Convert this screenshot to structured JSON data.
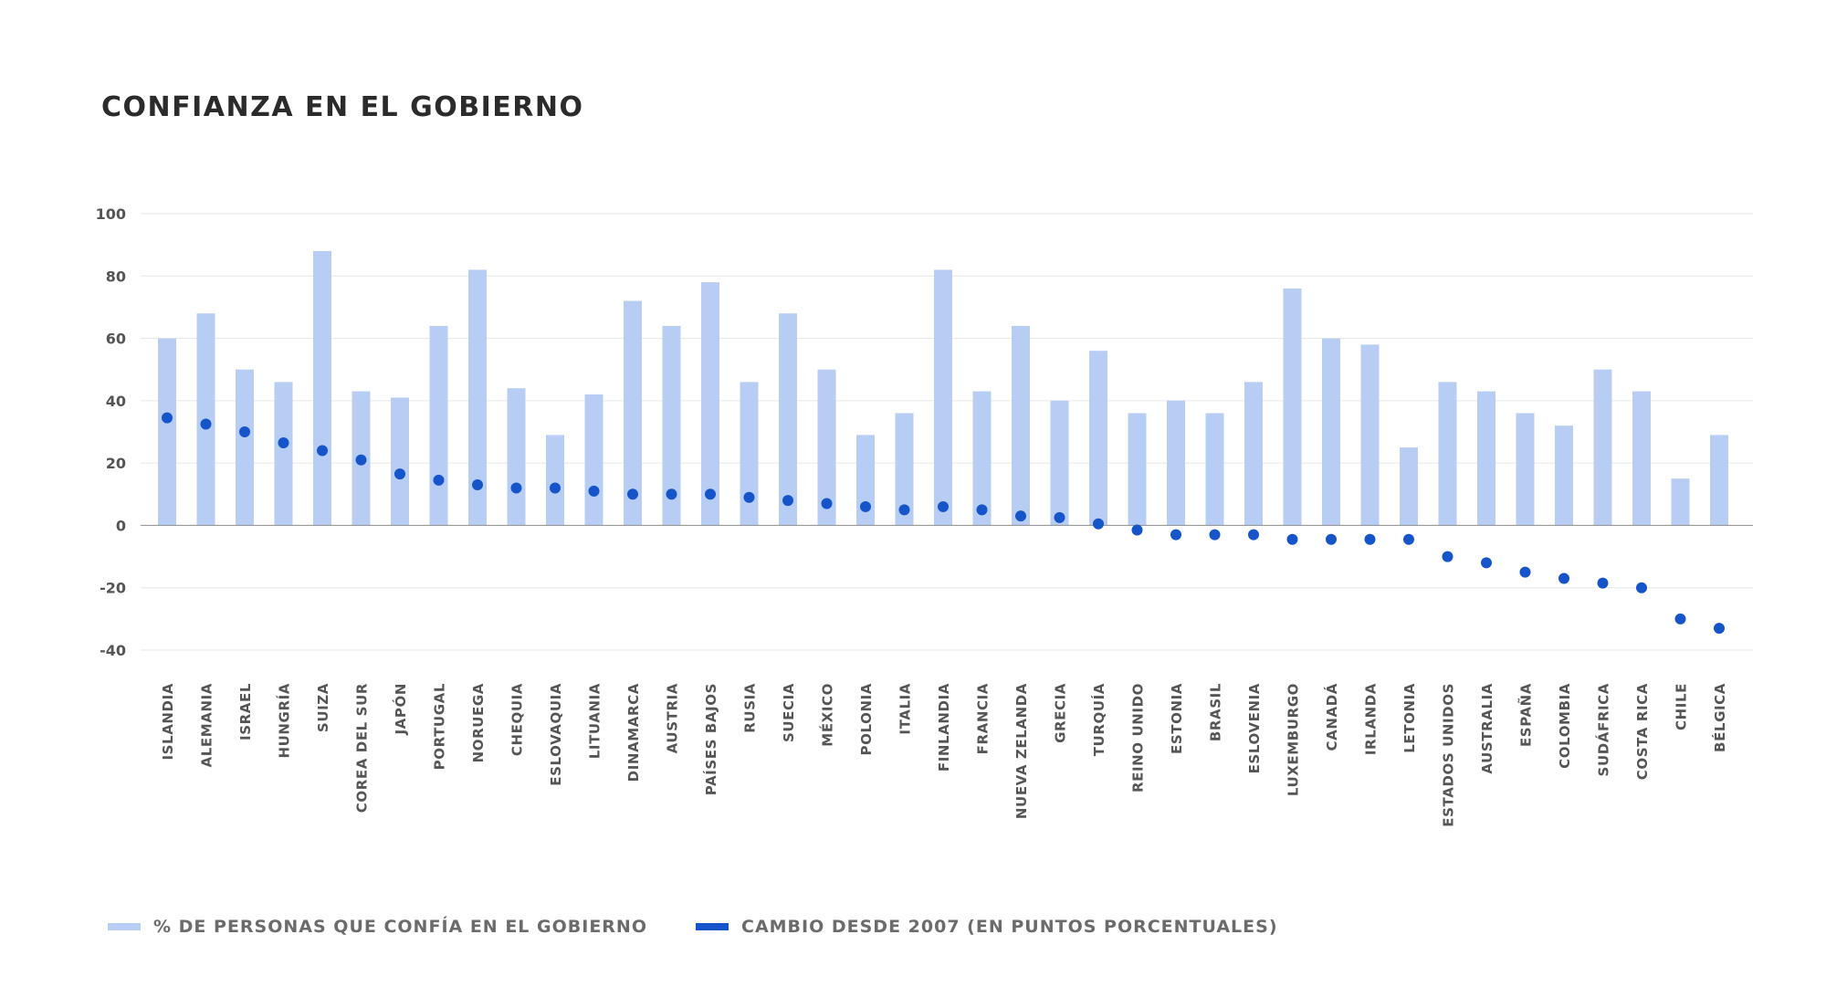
{
  "colors": {
    "bar": "#b7cdf3",
    "dot": "#1554c9"
  },
  "legend": {
    "bar_label": "% DE PERSONAS QUE CONFÍA EN EL GOBIERNO",
    "dot_label": "CAMBIO DESDE 2007 (EN PUNTOS PORCENTUALES)"
  },
  "chart_data": {
    "type": "bar",
    "title": "CONFIANZA EN EL GOBIERNO",
    "xlabel": "",
    "ylabel": "",
    "ylim": [
      -40,
      100
    ],
    "yticks": [
      100,
      80,
      60,
      40,
      20,
      0,
      -20,
      -40
    ],
    "grid": true,
    "legend_position": "bottom",
    "categories": [
      "ISLANDIA",
      "ALEMANIA",
      "ISRAEL",
      "HUNGRÍA",
      "SUIZA",
      "COREA DEL SUR",
      "JAPÓN",
      "PORTUGAL",
      "NORUEGA",
      "CHEQUIA",
      "ESLOVAQUIA",
      "LITUANIA",
      "DINAMARCA",
      "AUSTRIA",
      "PAÍSES BAJOS",
      "RUSIA",
      "SUECIA",
      "MÉXICO",
      "POLONIA",
      "ITALIA",
      "FINLANDIA",
      "FRANCIA",
      "NUEVA ZELANDA",
      "GRECIA",
      "TURQUÍA",
      "REINO UNIDO",
      "ESTONIA",
      "BRASIL",
      "ESLOVENIA",
      "LUXEMBURGO",
      "CANADÁ",
      "IRLANDA",
      "LETONIA",
      "ESTADOS UNIDOS",
      "AUSTRALIA",
      "ESPAÑA",
      "COLOMBIA",
      "SUDÁFRICA",
      "COSTA RICA",
      "CHILE",
      "BÉLGICA"
    ],
    "series": [
      {
        "name": "% DE PERSONAS QUE CONFÍA EN EL GOBIERNO",
        "kind": "bar",
        "values": [
          60,
          68,
          50,
          46,
          88,
          43,
          41,
          64,
          82,
          44,
          29,
          42,
          72,
          64,
          78,
          46,
          68,
          50,
          29,
          36,
          82,
          43,
          64,
          40,
          56,
          36,
          40,
          36,
          46,
          76,
          60,
          58,
          25,
          46,
          43,
          36,
          32,
          50,
          43,
          15,
          29
        ]
      },
      {
        "name": "CAMBIO DESDE 2007 (EN PUNTOS PORCENTUALES)",
        "kind": "scatter",
        "values": [
          34.5,
          32.5,
          30,
          26.5,
          24,
          21,
          16.5,
          14.5,
          13,
          12,
          12,
          11,
          10,
          10,
          10,
          9,
          8,
          7,
          6,
          5,
          6,
          5,
          3,
          2.5,
          0.5,
          -1.5,
          -3,
          -3,
          -3,
          -4.5,
          -4.5,
          -4.5,
          -4.5,
          -10,
          -12,
          -15,
          -17,
          -18.5,
          -20,
          -30,
          -33
        ]
      }
    ]
  }
}
